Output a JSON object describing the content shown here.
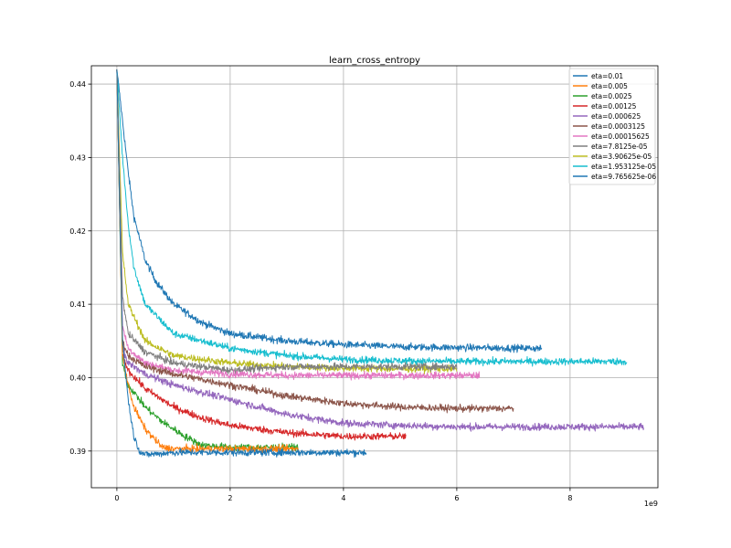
{
  "chart_data": {
    "type": "line",
    "title": "learn_cross_entropy",
    "xlabel": "",
    "ylabel": "",
    "x_offset_label": "1e9",
    "xlim": [
      -0.45,
      9.55
    ],
    "ylim": [
      0.385,
      0.4425
    ],
    "x_ticks": [
      0,
      2,
      4,
      6,
      8
    ],
    "x_tick_labels": [
      "0",
      "2",
      "4",
      "6",
      "8"
    ],
    "y_ticks": [
      0.39,
      0.4,
      0.41,
      0.42,
      0.43,
      0.44
    ],
    "y_tick_labels": [
      "0.39",
      "0.40",
      "0.41",
      "0.42",
      "0.43",
      "0.44"
    ],
    "grid": true,
    "legend_position": "top-right",
    "series": [
      {
        "name": "eta=0.01",
        "color": "#1f77b4",
        "x": [
          0,
          0.1,
          0.2,
          0.3,
          0.4,
          0.5,
          1.0,
          2.0,
          3.0,
          4.4
        ],
        "y": [
          0.442,
          0.405,
          0.397,
          0.392,
          0.39,
          0.3895,
          0.3898,
          0.3898,
          0.3898,
          0.3898
        ],
        "noise": 0.0006
      },
      {
        "name": "eta=0.005",
        "color": "#ff7f0e",
        "x": [
          0,
          0.1,
          0.2,
          0.3,
          0.5,
          0.8,
          1.0,
          2.0,
          3.2
        ],
        "y": [
          0.442,
          0.403,
          0.399,
          0.396,
          0.393,
          0.3905,
          0.3903,
          0.3903,
          0.3903
        ],
        "noise": 0.0006
      },
      {
        "name": "eta=0.0025",
        "color": "#2ca02c",
        "x": [
          0,
          0.1,
          0.2,
          0.5,
          0.8,
          1.2,
          1.5,
          2.0,
          3.2
        ],
        "y": [
          0.442,
          0.402,
          0.399,
          0.396,
          0.394,
          0.392,
          0.3908,
          0.3905,
          0.3905
        ],
        "noise": 0.0006
      },
      {
        "name": "eta=0.00125",
        "color": "#d62728",
        "x": [
          0,
          0.1,
          0.2,
          0.5,
          1.0,
          1.5,
          2.0,
          3.0,
          4.0,
          5.1
        ],
        "y": [
          0.442,
          0.403,
          0.401,
          0.3985,
          0.396,
          0.3945,
          0.3935,
          0.3925,
          0.392,
          0.392
        ],
        "noise": 0.0006
      },
      {
        "name": "eta=0.000625",
        "color": "#9467bd",
        "x": [
          0,
          0.1,
          0.2,
          0.5,
          1.0,
          2.0,
          3.0,
          4.0,
          5.0,
          6.0,
          7.0,
          8.0,
          9.3
        ],
        "y": [
          0.442,
          0.404,
          0.402,
          0.4005,
          0.399,
          0.397,
          0.395,
          0.3938,
          0.3935,
          0.3933,
          0.3933,
          0.3933,
          0.3933
        ],
        "noise": 0.0006
      },
      {
        "name": "eta=0.0003125",
        "color": "#8c564b",
        "x": [
          0,
          0.1,
          0.2,
          0.5,
          1.0,
          2.0,
          3.0,
          4.0,
          5.0,
          6.0,
          7.0
        ],
        "y": [
          0.442,
          0.405,
          0.403,
          0.4015,
          0.4005,
          0.399,
          0.3975,
          0.3965,
          0.396,
          0.3958,
          0.3958
        ],
        "noise": 0.0006
      },
      {
        "name": "eta=0.00015625",
        "color": "#e377c2",
        "x": [
          0,
          0.1,
          0.2,
          0.5,
          1.0,
          2.0,
          3.0,
          4.0,
          5.0,
          6.4
        ],
        "y": [
          0.442,
          0.407,
          0.404,
          0.402,
          0.401,
          0.4005,
          0.4003,
          0.4003,
          0.4003,
          0.4003
        ],
        "noise": 0.0006
      },
      {
        "name": "eta=7.8125e-05",
        "color": "#7f7f7f",
        "x": [
          0,
          0.1,
          0.2,
          0.5,
          1.0,
          2.0,
          3.0,
          4.0,
          5.0,
          6.0
        ],
        "y": [
          0.442,
          0.411,
          0.406,
          0.4035,
          0.402,
          0.401,
          0.4015,
          0.4015,
          0.4015,
          0.4015
        ],
        "noise": 0.0006
      },
      {
        "name": "eta=3.90625e-05",
        "color": "#bcbd22",
        "x": [
          0,
          0.1,
          0.2,
          0.5,
          1.0,
          2.0,
          3.0,
          4.0,
          5.0,
          6.0
        ],
        "y": [
          0.442,
          0.417,
          0.41,
          0.405,
          0.403,
          0.402,
          0.4015,
          0.4013,
          0.4012,
          0.4012
        ],
        "noise": 0.0006
      },
      {
        "name": "eta=1.953125e-05",
        "color": "#17becf",
        "x": [
          0,
          0.1,
          0.2,
          0.3,
          0.5,
          1.0,
          2.0,
          3.0,
          4.0,
          5.0,
          6.0,
          7.0,
          8.0,
          9.0
        ],
        "y": [
          0.442,
          0.43,
          0.421,
          0.415,
          0.41,
          0.406,
          0.404,
          0.403,
          0.4025,
          0.4023,
          0.4022,
          0.4022,
          0.4022,
          0.4022
        ],
        "noise": 0.0006
      },
      {
        "name": "eta=9.765625e-06",
        "color": "#1f77b4",
        "x": [
          0,
          0.1,
          0.2,
          0.3,
          0.5,
          0.7,
          1.0,
          1.5,
          2.0,
          3.0,
          4.0,
          5.0,
          6.0,
          7.5
        ],
        "y": [
          0.442,
          0.435,
          0.428,
          0.422,
          0.416,
          0.413,
          0.41,
          0.4075,
          0.406,
          0.405,
          0.4045,
          0.4042,
          0.4041,
          0.404
        ],
        "noise": 0.0006
      }
    ]
  }
}
